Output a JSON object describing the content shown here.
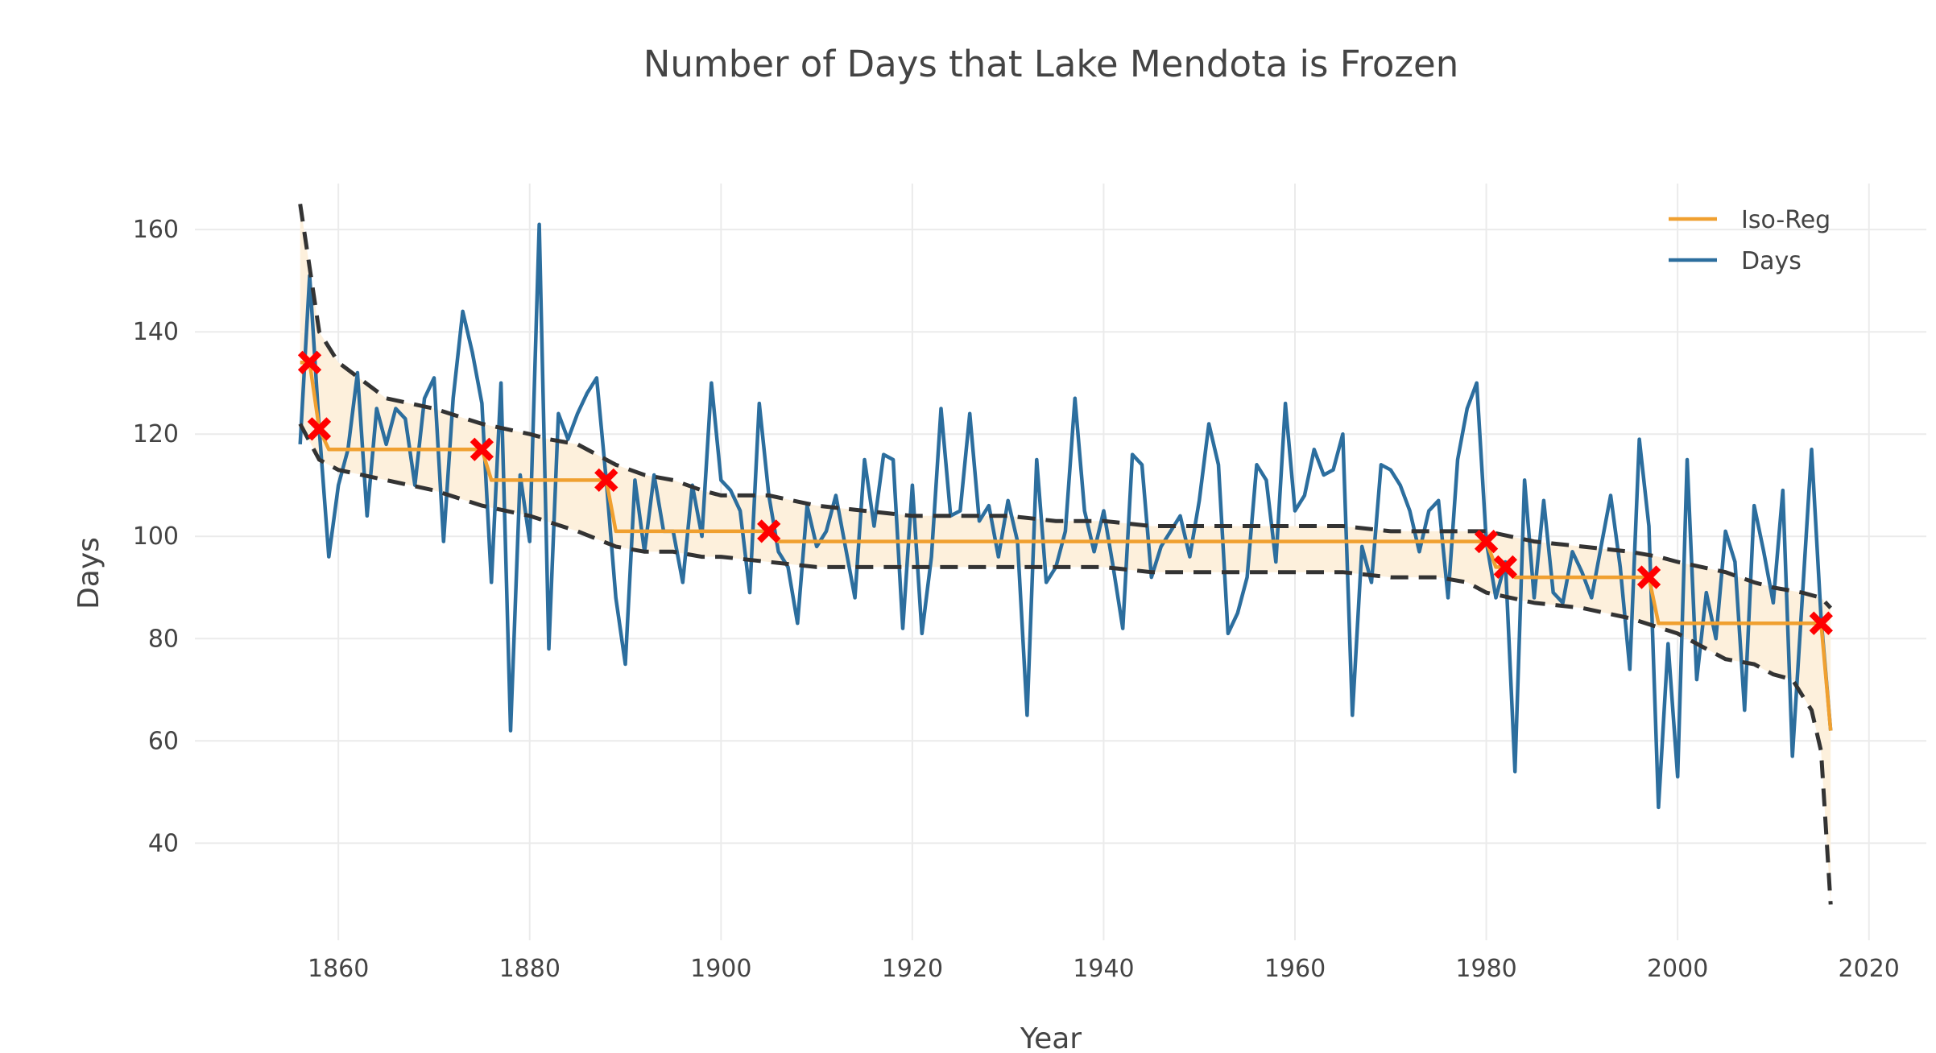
{
  "chart_data": {
    "type": "line",
    "title": "Number of Days that Lake Mendota is Frozen",
    "xlabel": "Year",
    "ylabel": "Days",
    "xlim": [
      1845,
      2026
    ],
    "ylim": [
      21,
      169
    ],
    "x_ticks": [
      1860,
      1880,
      1900,
      1920,
      1940,
      1960,
      1980,
      2000,
      2020
    ],
    "y_ticks": [
      40,
      60,
      80,
      100,
      120,
      140,
      160
    ],
    "grid": true,
    "legend_position": "top-right",
    "colors": {
      "days": "#2c6e9e",
      "isoreg": "#f0a030",
      "band_fill": "#fdf0dc",
      "bounds": "#333333",
      "knots": "#ff0000",
      "grid": "#ebebeb",
      "text": "#444444"
    },
    "series": [
      {
        "name": "Iso-Reg",
        "x": [
          1856,
          1857,
          1858,
          1859,
          1860,
          1861,
          1862,
          1863,
          1864,
          1865,
          1866,
          1867,
          1868,
          1869,
          1870,
          1871,
          1872,
          1873,
          1874,
          1875,
          1876,
          1877,
          1878,
          1879,
          1880,
          1881,
          1882,
          1883,
          1884,
          1885,
          1886,
          1887,
          1888,
          1889,
          1890,
          1891,
          1892,
          1893,
          1894,
          1895,
          1896,
          1897,
          1898,
          1899,
          1900,
          1901,
          1902,
          1903,
          1904,
          1905,
          1906,
          1907,
          1908,
          1909,
          1910,
          1911,
          1912,
          1913,
          1914,
          1915,
          1916,
          1917,
          1918,
          1919,
          1920,
          1921,
          1922,
          1923,
          1924,
          1925,
          1926,
          1927,
          1928,
          1929,
          1930,
          1931,
          1932,
          1933,
          1934,
          1935,
          1936,
          1937,
          1938,
          1939,
          1940,
          1941,
          1942,
          1943,
          1944,
          1945,
          1946,
          1947,
          1948,
          1949,
          1950,
          1951,
          1952,
          1953,
          1954,
          1955,
          1956,
          1957,
          1958,
          1959,
          1960,
          1961,
          1962,
          1963,
          1964,
          1965,
          1966,
          1967,
          1968,
          1969,
          1970,
          1971,
          1972,
          1973,
          1974,
          1975,
          1976,
          1977,
          1978,
          1979,
          1980,
          1981,
          1982,
          1983,
          1984,
          1985,
          1986,
          1987,
          1988,
          1989,
          1990,
          1991,
          1992,
          1993,
          1994,
          1995,
          1996,
          1997,
          1998,
          1999,
          2000,
          2001,
          2002,
          2003,
          2004,
          2005,
          2006,
          2007,
          2008,
          2009,
          2010,
          2011,
          2012,
          2013,
          2014,
          2015,
          2016
        ],
        "values": [
          134,
          134,
          121,
          117,
          117,
          117,
          117,
          117,
          117,
          117,
          117,
          117,
          117,
          117,
          117,
          117,
          117,
          117,
          117,
          117,
          111,
          111,
          111,
          111,
          111,
          111,
          111,
          111,
          111,
          111,
          111,
          111,
          111,
          101,
          101,
          101,
          101,
          101,
          101,
          101,
          101,
          101,
          101,
          101,
          101,
          101,
          101,
          101,
          101,
          101,
          99,
          99,
          99,
          99,
          99,
          99,
          99,
          99,
          99,
          99,
          99,
          99,
          99,
          99,
          99,
          99,
          99,
          99,
          99,
          99,
          99,
          99,
          99,
          99,
          99,
          99,
          99,
          99,
          99,
          99,
          99,
          99,
          99,
          99,
          99,
          99,
          99,
          99,
          99,
          99,
          99,
          99,
          99,
          99,
          99,
          99,
          99,
          99,
          99,
          99,
          99,
          99,
          99,
          99,
          99,
          99,
          99,
          99,
          99,
          99,
          99,
          99,
          99,
          99,
          99,
          99,
          99,
          99,
          99,
          99,
          99,
          99,
          99,
          99,
          99,
          94,
          94,
          92,
          92,
          92,
          92,
          92,
          92,
          92,
          92,
          92,
          92,
          92,
          92,
          92,
          92,
          92,
          83,
          83,
          83,
          83,
          83,
          83,
          83,
          83,
          83,
          83,
          83,
          83,
          83,
          83,
          83,
          83,
          83,
          83,
          62
        ]
      },
      {
        "name": "Days",
        "x": [
          1856,
          1857,
          1858,
          1859,
          1860,
          1861,
          1862,
          1863,
          1864,
          1865,
          1866,
          1867,
          1868,
          1869,
          1870,
          1871,
          1872,
          1873,
          1874,
          1875,
          1876,
          1877,
          1878,
          1879,
          1880,
          1881,
          1882,
          1883,
          1884,
          1885,
          1886,
          1887,
          1888,
          1889,
          1890,
          1891,
          1892,
          1893,
          1894,
          1895,
          1896,
          1897,
          1898,
          1899,
          1900,
          1901,
          1902,
          1903,
          1904,
          1905,
          1906,
          1907,
          1908,
          1909,
          1910,
          1911,
          1912,
          1913,
          1914,
          1915,
          1916,
          1917,
          1918,
          1919,
          1920,
          1921,
          1922,
          1923,
          1924,
          1925,
          1926,
          1927,
          1928,
          1929,
          1930,
          1931,
          1932,
          1933,
          1934,
          1935,
          1936,
          1937,
          1938,
          1939,
          1940,
          1941,
          1942,
          1943,
          1944,
          1945,
          1946,
          1947,
          1948,
          1949,
          1950,
          1951,
          1952,
          1953,
          1954,
          1955,
          1956,
          1957,
          1958,
          1959,
          1960,
          1961,
          1962,
          1963,
          1964,
          1965,
          1966,
          1967,
          1968,
          1969,
          1970,
          1971,
          1972,
          1973,
          1974,
          1975,
          1976,
          1977,
          1978,
          1979,
          1980,
          1981,
          1982,
          1983,
          1984,
          1985,
          1986,
          1987,
          1988,
          1989,
          1990,
          1991,
          1992,
          1993,
          1994,
          1995,
          1996,
          1997,
          1998,
          1999,
          2000,
          2001,
          2002,
          2003,
          2004,
          2005,
          2006,
          2007,
          2008,
          2009,
          2010,
          2011,
          2012,
          2013,
          2014,
          2015,
          2016
        ],
        "values": [
          118,
          151,
          121,
          96,
          110,
          117,
          132,
          104,
          125,
          118,
          125,
          123,
          110,
          127,
          131,
          99,
          127,
          144,
          136,
          126,
          91,
          130,
          62,
          112,
          99,
          161,
          78,
          124,
          119,
          124,
          128,
          131,
          111,
          88,
          75,
          111,
          97,
          112,
          101,
          101,
          91,
          110,
          100,
          130,
          111,
          109,
          105,
          89,
          126,
          108,
          97,
          94,
          83,
          106,
          98,
          101,
          108,
          98,
          88,
          115,
          102,
          116,
          115,
          82,
          110,
          81,
          96,
          125,
          104,
          105,
          124,
          103,
          106,
          96,
          107,
          99,
          65,
          115,
          91,
          94,
          101,
          127,
          105,
          97,
          105,
          94,
          82,
          116,
          114,
          92,
          98,
          101,
          104,
          96,
          107,
          122,
          114,
          81,
          85,
          92,
          114,
          111,
          95,
          126,
          105,
          108,
          117,
          112,
          113,
          120,
          65,
          98,
          91,
          114,
          113,
          110,
          105,
          97,
          105,
          107,
          88,
          115,
          125,
          130,
          99,
          88,
          95,
          54,
          111,
          88,
          107,
          89,
          87,
          97,
          93,
          88,
          98,
          108,
          94,
          74,
          119,
          102,
          47,
          79,
          53,
          115,
          72,
          89,
          80,
          101,
          95,
          66,
          106,
          97,
          87,
          109,
          57,
          87,
          117,
          84,
          62
        ]
      }
    ],
    "upper_bound": {
      "x": [
        1856,
        1858,
        1860,
        1865,
        1870,
        1875,
        1880,
        1882,
        1885,
        1888,
        1889,
        1892,
        1895,
        1898,
        1900,
        1903,
        1905,
        1910,
        1915,
        1920,
        1925,
        1930,
        1935,
        1940,
        1945,
        1950,
        1955,
        1960,
        1965,
        1970,
        1975,
        1978,
        1980,
        1985,
        1990,
        1995,
        1998,
        2000,
        2005,
        2008,
        2010,
        2013,
        2015,
        2016
      ],
      "values": [
        165,
        140,
        134,
        127,
        125,
        122,
        120,
        119,
        118,
        115,
        114,
        112,
        111,
        109,
        108,
        108,
        108,
        106,
        105,
        104,
        104,
        104,
        103,
        103,
        102,
        102,
        102,
        102,
        102,
        101,
        101,
        101,
        101,
        99,
        98,
        97,
        96,
        95,
        93,
        91,
        90,
        89,
        88,
        86
      ]
    },
    "lower_bound": {
      "x": [
        1856,
        1858,
        1860,
        1865,
        1870,
        1875,
        1880,
        1885,
        1889,
        1892,
        1895,
        1898,
        1900,
        1905,
        1910,
        1915,
        1920,
        1925,
        1930,
        1935,
        1940,
        1945,
        1950,
        1955,
        1960,
        1965,
        1970,
        1975,
        1978,
        1980,
        1985,
        1990,
        1995,
        2000,
        2005,
        2008,
        2010,
        2012,
        2014,
        2015,
        2016
      ],
      "values": [
        122,
        115,
        113,
        111,
        109,
        106,
        104,
        101,
        98,
        97,
        97,
        96,
        96,
        95,
        94,
        94,
        94,
        94,
        94,
        94,
        94,
        93,
        93,
        93,
        93,
        93,
        92,
        92,
        91,
        89,
        87,
        86,
        84,
        81,
        76,
        75,
        73,
        72,
        66,
        58,
        28
      ]
    },
    "knots": {
      "x": [
        1857,
        1858,
        1875,
        1888,
        1905,
        1980,
        1982,
        1997,
        2015
      ],
      "values": [
        134,
        121,
        117,
        111,
        101,
        99,
        94,
        92,
        83
      ]
    }
  }
}
